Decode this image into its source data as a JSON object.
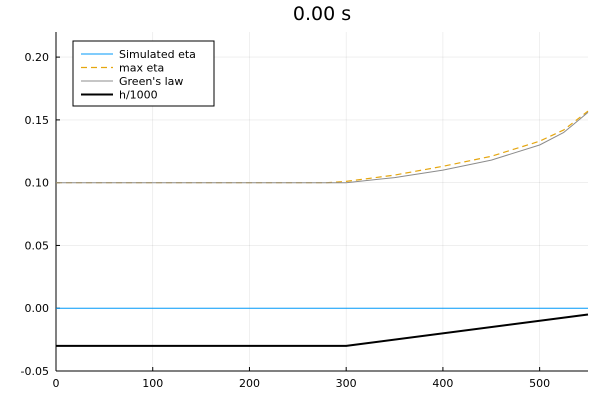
{
  "chart_data": {
    "type": "line",
    "title": "0.00 s",
    "xlabel": "",
    "ylabel": "",
    "xlim": [
      0,
      550
    ],
    "ylim": [
      -0.05,
      0.22
    ],
    "xticks": [
      0,
      100,
      200,
      300,
      400,
      500
    ],
    "xtick_labels": [
      "0",
      "100",
      "200",
      "300",
      "400",
      "500"
    ],
    "yticks": [
      -0.05,
      0.0,
      0.05,
      0.1,
      0.15,
      0.2
    ],
    "ytick_labels": [
      "-0.05",
      "0.00",
      "0.05",
      "0.10",
      "0.15",
      "0.20"
    ],
    "grid": true,
    "legend_position": "top-left",
    "series": [
      {
        "name": "Simulated eta",
        "color": "#009AFA",
        "style": "solid",
        "x": [
          0,
          550
        ],
        "y": [
          0.0,
          0.0
        ]
      },
      {
        "name": "max eta",
        "color": "#E5A60F",
        "style": "dashed",
        "x": [
          0,
          280,
          300,
          350,
          400,
          450,
          500,
          525,
          550
        ],
        "y": [
          0.1,
          0.1,
          0.101,
          0.106,
          0.113,
          0.121,
          0.133,
          0.142,
          0.157
        ]
      },
      {
        "name": "Green's law",
        "color": "#8C8C8C",
        "style": "solid",
        "x": [
          0,
          300,
          350,
          400,
          450,
          500,
          525,
          550
        ],
        "y": [
          0.1,
          0.1,
          0.104,
          0.11,
          0.118,
          0.13,
          0.14,
          0.156
        ]
      },
      {
        "name": "h/1000",
        "color": "#000000",
        "style": "solid",
        "x": [
          0,
          300,
          550
        ],
        "y": [
          -0.03,
          -0.03,
          -0.005
        ]
      }
    ]
  }
}
